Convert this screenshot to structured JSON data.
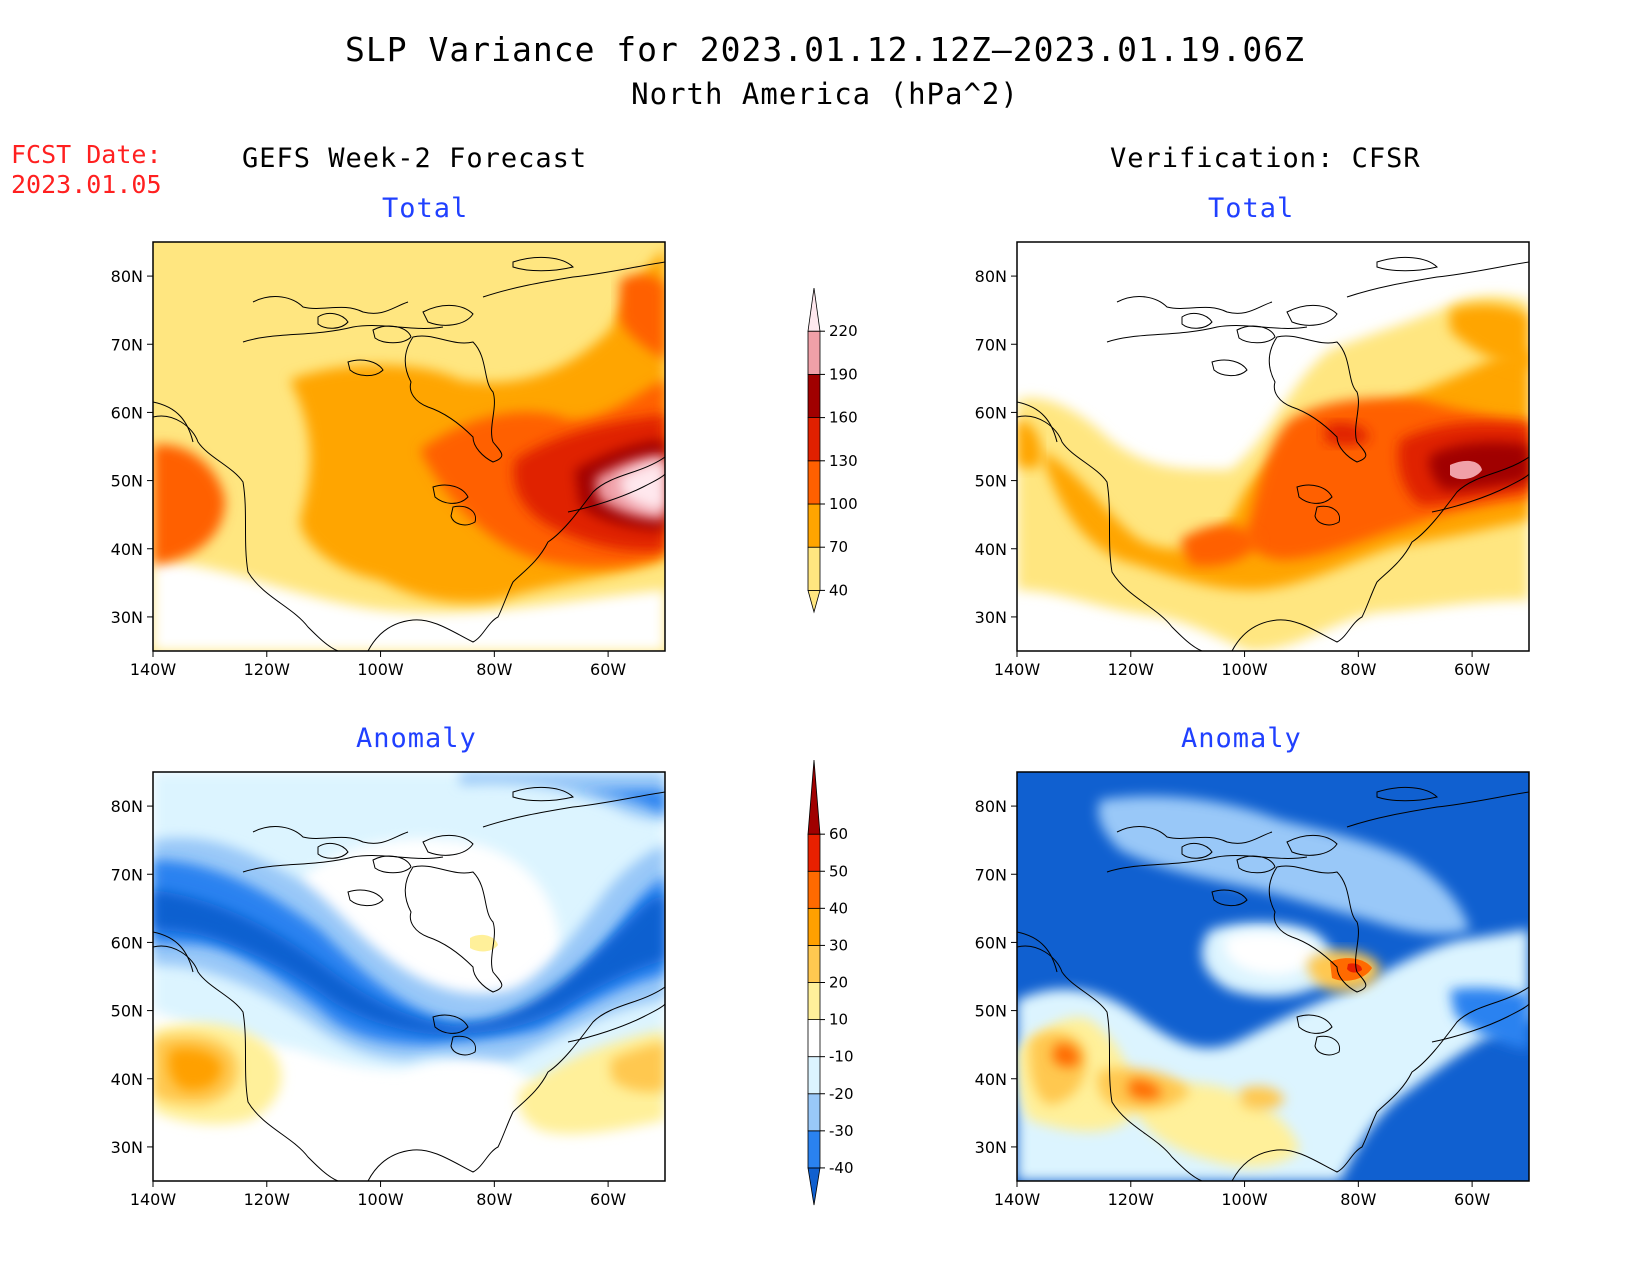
{
  "header": {
    "title": "SLP Variance for 2023.01.12.12Z–2023.01.19.06Z",
    "subtitle": "North America (hPa^2)"
  },
  "forecast": {
    "label": "FCST Date:",
    "date": "2023.01.05"
  },
  "columns": {
    "left": "GEFS Week-2 Forecast",
    "right": "Verification: CFSR"
  },
  "panels": {
    "top_left": "Total",
    "top_right": "Total",
    "bottom_left": "Anomaly",
    "bottom_right": "Anomaly"
  },
  "axes": {
    "lat_labels": [
      "80N",
      "70N",
      "60N",
      "50N",
      "40N",
      "30N"
    ],
    "lon_labels": [
      "140W",
      "120W",
      "100W",
      "80W",
      "60W"
    ],
    "lat_range": [
      25,
      85
    ],
    "lon_range": [
      -140,
      -50
    ]
  },
  "colorbars": {
    "total": {
      "levels": [
        "40",
        "70",
        "100",
        "130",
        "160",
        "190",
        "220"
      ],
      "colors": [
        "#ffe680",
        "#ffa500",
        "#ff6000",
        "#e02000",
        "#a00000",
        "#f0a0a8",
        "#ffe8ee"
      ]
    },
    "anomaly": {
      "levels": [
        "-40",
        "-30",
        "-20",
        "-10",
        "10",
        "20",
        "30",
        "40",
        "50",
        "60"
      ],
      "colors": [
        "#1060d0",
        "#2a82f0",
        "#99c8f8",
        "#dcf4ff",
        "#ffffff",
        "#fff09a",
        "#ffc850",
        "#ffa000",
        "#ff6a00",
        "#e82000",
        "#a00000"
      ]
    }
  }
}
